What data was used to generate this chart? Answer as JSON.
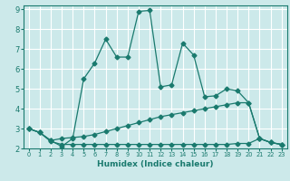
{
  "xlabel": "Humidex (Indice chaleur)",
  "xlim": [
    -0.5,
    23.5
  ],
  "ylim": [
    2,
    9.2
  ],
  "yticks": [
    2,
    3,
    4,
    5,
    6,
    7,
    8,
    9
  ],
  "xticks": [
    0,
    1,
    2,
    3,
    4,
    5,
    6,
    7,
    8,
    9,
    10,
    11,
    12,
    13,
    14,
    15,
    16,
    17,
    18,
    19,
    20,
    21,
    22,
    23
  ],
  "background_color": "#cce9ea",
  "grid_color": "#ffffff",
  "line_color": "#1a7a6e",
  "line1_x": [
    0,
    1,
    2,
    3,
    4,
    5,
    6,
    7,
    8,
    9,
    10,
    11,
    12,
    13,
    14,
    15,
    16,
    17,
    18,
    19,
    20,
    21,
    22,
    23
  ],
  "line1_y": [
    3.0,
    2.8,
    2.4,
    2.1,
    2.5,
    5.5,
    6.3,
    7.5,
    6.6,
    6.6,
    8.9,
    8.95,
    5.1,
    5.2,
    7.3,
    6.7,
    4.6,
    4.65,
    5.0,
    4.9,
    4.3,
    2.5,
    2.3,
    2.2
  ],
  "line2_x": [
    0,
    1,
    2,
    3,
    4,
    5,
    6,
    7,
    8,
    9,
    10,
    11,
    12,
    13,
    14,
    15,
    16,
    17,
    18,
    19,
    20,
    21,
    22,
    23
  ],
  "line2_y": [
    3.0,
    2.8,
    2.4,
    2.5,
    2.55,
    2.6,
    2.7,
    2.85,
    3.0,
    3.15,
    3.3,
    3.45,
    3.6,
    3.7,
    3.8,
    3.9,
    4.0,
    4.1,
    4.2,
    4.3,
    4.3,
    2.5,
    2.3,
    2.2
  ],
  "line3_x": [
    0,
    1,
    2,
    3,
    4,
    5,
    6,
    7,
    8,
    9,
    10,
    11,
    12,
    13,
    14,
    15,
    16,
    17,
    18,
    19,
    20,
    21,
    22,
    23
  ],
  "line3_y": [
    3.0,
    2.8,
    2.35,
    2.2,
    2.2,
    2.2,
    2.2,
    2.2,
    2.2,
    2.2,
    2.2,
    2.2,
    2.2,
    2.2,
    2.2,
    2.2,
    2.2,
    2.2,
    2.2,
    2.25,
    2.25,
    2.5,
    2.3,
    2.2
  ]
}
